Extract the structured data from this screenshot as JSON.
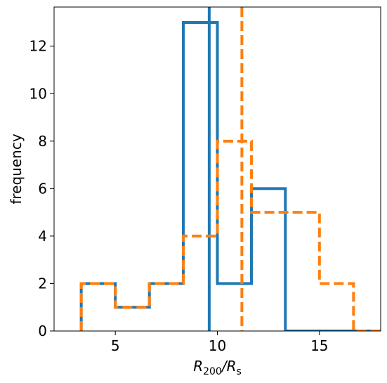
{
  "chart_data": {
    "type": "histogram",
    "title": "",
    "xlabel": "R_{200}/R_s",
    "ylabel": "frequency",
    "xlim": [
      2.0,
      18.0
    ],
    "ylim": [
      0,
      13.65
    ],
    "xticks": [
      5,
      10,
      15
    ],
    "yticks": [
      0,
      2,
      4,
      6,
      8,
      10,
      12
    ],
    "grid": false,
    "legend": "none",
    "bin_edges": [
      3.33,
      5.0,
      6.67,
      8.33,
      10.0,
      11.67,
      13.33,
      15.0,
      16.67,
      18.33
    ],
    "series": [
      {
        "style": "solid",
        "color": "#1f77b4",
        "counts": [
          2,
          1,
          2,
          13,
          2,
          6,
          0,
          0,
          0
        ],
        "vline": 9.6
      },
      {
        "style": "dashed",
        "color": "#ff7f0e",
        "counts": [
          2,
          1,
          2,
          4,
          8,
          5,
          5,
          2,
          0
        ],
        "vline": 11.2
      }
    ]
  }
}
